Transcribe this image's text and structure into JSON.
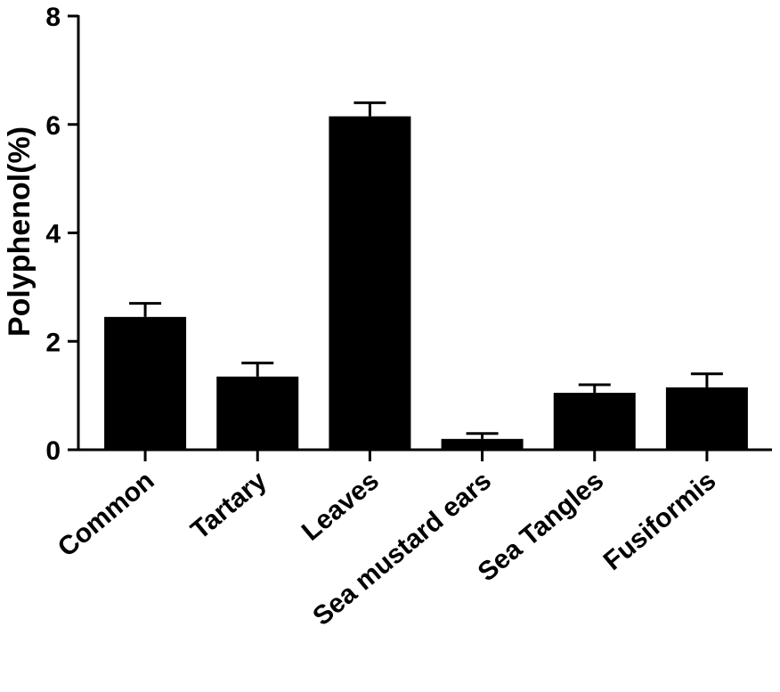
{
  "chart_data": {
    "type": "bar",
    "title": "",
    "xlabel": "",
    "ylabel": "Polyphenol(%)",
    "ylim": [
      0,
      8
    ],
    "yticks": [
      0,
      2,
      4,
      6,
      8
    ],
    "ytick_labels": [
      "0",
      "2",
      "4",
      "6",
      "8"
    ],
    "grid": false,
    "bar_color": "#000000",
    "categories": [
      "Common",
      "Tartary",
      "Leaves",
      "Sea mustard ears",
      "Sea Tangles",
      "Fusiformis"
    ],
    "values": [
      2.45,
      1.35,
      6.15,
      0.2,
      1.05,
      1.15
    ],
    "errors": [
      0.25,
      0.25,
      0.25,
      0.1,
      0.15,
      0.25
    ]
  }
}
